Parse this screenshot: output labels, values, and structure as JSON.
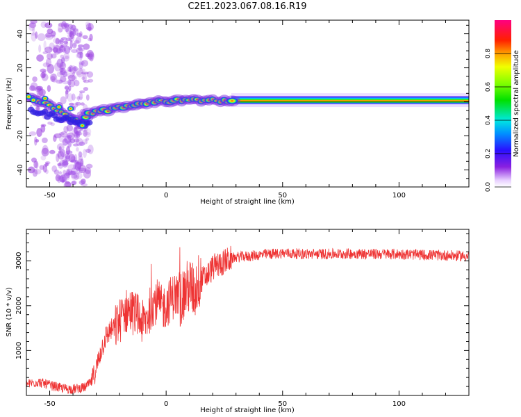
{
  "title": "C2E1.2023.067.08.16.R19",
  "colors": {
    "snr_line": "#ee3333",
    "axis": "#000000",
    "background": "#ffffff"
  },
  "chart_data": [
    {
      "type": "heatmap",
      "title": "C2E1.2023.067.08.16.R19",
      "xlabel": "Height of straight line (km)",
      "ylabel": "Frequency (Hz)",
      "xlim": [
        -60,
        130
      ],
      "ylim": [
        -50,
        48
      ],
      "x_ticks": [
        -50,
        0,
        50,
        100
      ],
      "x_tick_labels": [
        "-50",
        "0",
        "50",
        "100"
      ],
      "y_ticks": [
        -40,
        -20,
        0,
        20,
        40
      ],
      "y_tick_labels": [
        "-40",
        "-20",
        "0",
        "20",
        "40"
      ],
      "colorbar": {
        "label": "Normalized spectral amplitude",
        "range": [
          0,
          1
        ],
        "ticks": [
          0.0,
          0.2,
          0.4,
          0.6,
          0.8
        ],
        "tick_labels": [
          "0.0",
          "0.2",
          "0.4",
          "0.6",
          "0.8"
        ],
        "colormap": "rainbow (white-purple-blue-cyan-green-yellow-red-magenta)"
      },
      "peak_frequency_track": {
        "x": [
          -60,
          -55,
          -50,
          -45,
          -40,
          -36,
          -33,
          -30,
          -25,
          -20,
          -15,
          -10,
          -5,
          0,
          5,
          10,
          15,
          20,
          25,
          30,
          40,
          50,
          60,
          80,
          100,
          130
        ],
        "y": [
          3,
          1,
          -2,
          -6,
          -10,
          -14,
          -6,
          -6,
          -5,
          -3,
          -2,
          -1,
          0,
          0,
          1,
          2,
          1,
          1,
          0,
          1,
          1,
          1,
          1,
          1,
          1,
          1
        ]
      },
      "spread_region": {
        "x_range": [
          -58,
          -32
        ],
        "y_range": [
          -50,
          48
        ]
      }
    },
    {
      "type": "line",
      "xlabel": "Height of straight line (km)",
      "ylabel": "SNR (10 * v/v)",
      "xlim": [
        -60,
        130
      ],
      "ylim": [
        0,
        3700
      ],
      "x_ticks": [
        -50,
        0,
        50,
        100
      ],
      "x_tick_labels": [
        "-50",
        "0",
        "50",
        "100"
      ],
      "y_ticks": [
        1000,
        2000,
        3000
      ],
      "y_tick_labels": [
        "1000",
        "2000",
        "3000"
      ],
      "series": [
        {
          "x": [
            -60,
            -55,
            -50,
            -45,
            -40,
            -35,
            -32,
            -30,
            -28,
            -26,
            -24,
            -22,
            -20,
            -18,
            -16,
            -14,
            -12,
            -10,
            -8,
            -6,
            -4,
            -2,
            0,
            2,
            4,
            6,
            8,
            10,
            12,
            14,
            16,
            18,
            20,
            22,
            24,
            26,
            28,
            30,
            35,
            40,
            45,
            50,
            55,
            60,
            70,
            80,
            90,
            100,
            110,
            120,
            130
          ],
          "y": [
            250,
            300,
            230,
            160,
            140,
            180,
            300,
            600,
            1000,
            1300,
            1450,
            1500,
            1650,
            1850,
            1900,
            1850,
            1750,
            1600,
            1750,
            2050,
            2100,
            1950,
            2000,
            2150,
            2250,
            2150,
            2300,
            2450,
            2300,
            2550,
            2600,
            2700,
            2850,
            2900,
            2950,
            3000,
            3050,
            3080,
            3100,
            3130,
            3150,
            3170,
            3160,
            3150,
            3150,
            3160,
            3150,
            3150,
            3130,
            3120,
            3100
          ]
        }
      ]
    }
  ]
}
